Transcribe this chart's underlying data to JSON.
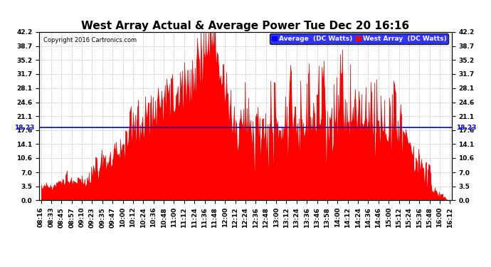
{
  "title": "West Array Actual & Average Power Tue Dec 20 16:16",
  "copyright": "Copyright 2016 Cartronics.com",
  "average_value": 18.23,
  "ymax": 42.2,
  "ymin": 0.0,
  "yticks": [
    0.0,
    3.5,
    7.0,
    10.6,
    14.1,
    17.6,
    21.1,
    24.6,
    28.1,
    31.7,
    35.2,
    38.7,
    42.2
  ],
  "legend_avg_label": "Average  (DC Watts)",
  "legend_west_label": "West Array  (DC Watts)",
  "avg_color": "#0000ff",
  "west_color": "#ff0000",
  "bg_color": "#ffffff",
  "grid_color": "#aaaaaa",
  "title_fontsize": 11,
  "tick_fontsize": 6.5,
  "x_tick_labels": [
    "08:16",
    "08:33",
    "08:45",
    "08:57",
    "09:10",
    "09:23",
    "09:35",
    "09:47",
    "10:00",
    "10:12",
    "10:24",
    "10:36",
    "10:48",
    "11:00",
    "11:12",
    "11:24",
    "11:36",
    "11:48",
    "12:00",
    "12:12",
    "12:24",
    "12:36",
    "12:48",
    "13:00",
    "13:12",
    "13:24",
    "13:36",
    "13:46",
    "13:58",
    "14:00",
    "14:12",
    "14:24",
    "14:36",
    "14:46",
    "15:00",
    "15:12",
    "15:24",
    "15:36",
    "15:48",
    "16:00",
    "16:12"
  ]
}
